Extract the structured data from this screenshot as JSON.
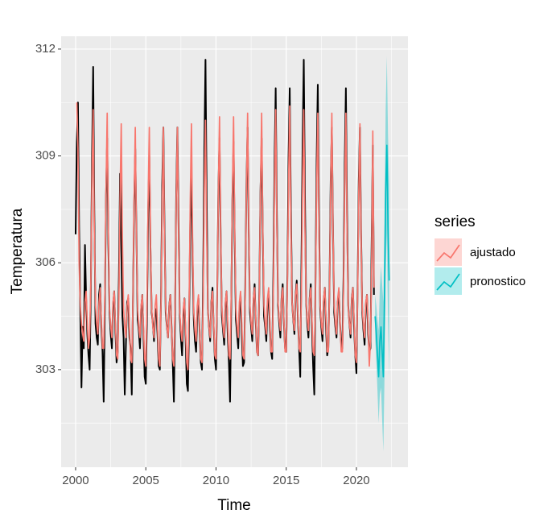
{
  "chart_data": {
    "type": "line",
    "xlabel": "Time",
    "ylabel": "Temperatura",
    "legend_title": "series",
    "legend_position": "right",
    "grid": true,
    "xlim": [
      1998.97,
      2023.67
    ],
    "xticks": [
      2000,
      2005,
      2010,
      2015,
      2020
    ],
    "ylim": [
      300.26,
      312.36
    ],
    "yticks": [
      303,
      306,
      309,
      312
    ],
    "x": [
      2000,
      2000.083,
      2000.167,
      2000.25,
      2000.333,
      2000.417,
      2000.5,
      2000.583,
      2000.667,
      2000.75,
      2000.833,
      2000.917,
      2001,
      2001.083,
      2001.167,
      2001.25,
      2001.333,
      2001.417,
      2001.5,
      2001.583,
      2001.667,
      2001.75,
      2001.833,
      2001.917,
      2002,
      2002.083,
      2002.167,
      2002.25,
      2002.333,
      2002.417,
      2002.5,
      2002.583,
      2002.667,
      2002.75,
      2002.833,
      2002.917,
      2003,
      2003.083,
      2003.167,
      2003.25,
      2003.333,
      2003.417,
      2003.5,
      2003.583,
      2003.667,
      2003.75,
      2003.833,
      2003.917,
      2004,
      2004.083,
      2004.167,
      2004.25,
      2004.333,
      2004.417,
      2004.5,
      2004.583,
      2004.667,
      2004.75,
      2004.833,
      2004.917,
      2005,
      2005.083,
      2005.167,
      2005.25,
      2005.333,
      2005.417,
      2005.5,
      2005.583,
      2005.667,
      2005.75,
      2005.833,
      2005.917,
      2006,
      2006.083,
      2006.167,
      2006.25,
      2006.333,
      2006.417,
      2006.5,
      2006.583,
      2006.667,
      2006.75,
      2006.833,
      2006.917,
      2007,
      2007.083,
      2007.167,
      2007.25,
      2007.333,
      2007.417,
      2007.5,
      2007.583,
      2007.667,
      2007.75,
      2007.833,
      2007.917,
      2008,
      2008.083,
      2008.167,
      2008.25,
      2008.333,
      2008.417,
      2008.5,
      2008.583,
      2008.667,
      2008.75,
      2008.833,
      2008.917,
      2009,
      2009.083,
      2009.167,
      2009.25,
      2009.333,
      2009.417,
      2009.5,
      2009.583,
      2009.667,
      2009.75,
      2009.833,
      2009.917,
      2010,
      2010.083,
      2010.167,
      2010.25,
      2010.333,
      2010.417,
      2010.5,
      2010.583,
      2010.667,
      2010.75,
      2010.833,
      2010.917,
      2011,
      2011.083,
      2011.167,
      2011.25,
      2011.333,
      2011.417,
      2011.5,
      2011.583,
      2011.667,
      2011.75,
      2011.833,
      2011.917,
      2012,
      2012.083,
      2012.167,
      2012.25,
      2012.333,
      2012.417,
      2012.5,
      2012.583,
      2012.667,
      2012.75,
      2012.833,
      2012.917,
      2013,
      2013.083,
      2013.167,
      2013.25,
      2013.333,
      2013.417,
      2013.5,
      2013.583,
      2013.667,
      2013.75,
      2013.833,
      2013.917,
      2014,
      2014.083,
      2014.167,
      2014.25,
      2014.333,
      2014.417,
      2014.5,
      2014.583,
      2014.667,
      2014.75,
      2014.833,
      2014.917,
      2015,
      2015.083,
      2015.167,
      2015.25,
      2015.333,
      2015.417,
      2015.5,
      2015.583,
      2015.667,
      2015.75,
      2015.833,
      2015.917,
      2016,
      2016.083,
      2016.167,
      2016.25,
      2016.333,
      2016.417,
      2016.5,
      2016.583,
      2016.667,
      2016.75,
      2016.833,
      2016.917,
      2017,
      2017.083,
      2017.167,
      2017.25,
      2017.333,
      2017.417,
      2017.5,
      2017.583,
      2017.667,
      2017.75,
      2017.833,
      2017.917,
      2018,
      2018.083,
      2018.167,
      2018.25,
      2018.333,
      2018.417,
      2018.5,
      2018.583,
      2018.667,
      2018.75,
      2018.833,
      2018.917,
      2019,
      2019.083,
      2019.167,
      2019.25,
      2019.333,
      2019.417,
      2019.5,
      2019.583,
      2019.667,
      2019.75,
      2019.833,
      2019.917,
      2020,
      2020.083,
      2020.167,
      2020.25,
      2020.333,
      2020.417,
      2020.5,
      2020.583,
      2020.667,
      2020.75,
      2020.833,
      2020.917,
      2021,
      2021.083,
      2021.167,
      2021.25
    ],
    "series": [
      {
        "color": "#000000",
        "values": [
          306.8,
          309.4,
          310.5,
          307.0,
          304.6,
          302.5,
          304.2,
          303.6,
          306.5,
          305.0,
          304.0,
          303.4,
          303.0,
          305.2,
          308.9,
          311.5,
          307.4,
          304.3,
          303.9,
          303.7,
          305.1,
          305.4,
          304.2,
          303.5,
          302.1,
          304.8,
          307.9,
          309.5,
          306.5,
          304.6,
          304.0,
          303.6,
          304.8,
          305.2,
          304.1,
          303.2,
          303.5,
          305.6,
          308.5,
          306.6,
          304.5,
          303.9,
          302.3,
          303.7,
          304.9,
          305.0,
          303.9,
          303.6,
          302.3,
          304.9,
          307.6,
          309.2,
          306.8,
          304.4,
          304.1,
          303.6,
          304.7,
          305.1,
          304.0,
          302.8,
          302.6,
          304.5,
          307.4,
          309.0,
          306.4,
          304.6,
          304.3,
          303.8,
          304.6,
          304.7,
          304.0,
          303.1,
          303.0,
          305.0,
          308.2,
          309.8,
          306.9,
          304.6,
          304.2,
          303.9,
          304.8,
          305.1,
          304.2,
          303.2,
          302.1,
          304.6,
          308.0,
          309.8,
          307.1,
          304.5,
          303.9,
          303.4,
          304.5,
          305.0,
          303.9,
          302.6,
          302.4,
          304.4,
          307.2,
          308.5,
          306.1,
          304.4,
          303.8,
          303.5,
          304.6,
          305.0,
          304.1,
          303.2,
          303.0,
          305.5,
          309.2,
          311.7,
          307.9,
          304.7,
          304.2,
          303.8,
          304.9,
          305.3,
          304.2,
          303.3,
          303.0,
          305.1,
          308.0,
          309.5,
          306.7,
          304.5,
          304.1,
          303.7,
          304.8,
          305.2,
          304.0,
          303.2,
          302.1,
          304.7,
          307.8,
          309.4,
          306.6,
          304.4,
          304.0,
          303.6,
          304.7,
          305.1,
          304.0,
          303.1,
          303.2,
          305.3,
          308.2,
          309.8,
          306.8,
          304.6,
          304.2,
          303.8,
          304.9,
          305.4,
          304.3,
          303.5,
          303.4,
          305.2,
          308.0,
          309.5,
          306.7,
          304.5,
          304.2,
          303.8,
          304.8,
          305.2,
          304.2,
          303.5,
          303.3,
          305.6,
          308.8,
          310.9,
          307.4,
          304.8,
          304.3,
          303.9,
          305.0,
          305.4,
          304.3,
          303.6,
          303.5,
          305.7,
          309.0,
          310.9,
          307.5,
          304.9,
          304.4,
          304.0,
          305.1,
          305.5,
          304.4,
          303.6,
          302.8,
          305.9,
          309.4,
          311.7,
          307.9,
          304.9,
          304.3,
          303.9,
          305.0,
          305.4,
          304.2,
          303.1,
          302.3,
          305.4,
          308.9,
          311.0,
          307.4,
          304.7,
          304.2,
          303.8,
          304.9,
          305.3,
          304.2,
          303.4,
          303.6,
          305.3,
          308.3,
          309.8,
          306.9,
          304.6,
          304.2,
          303.9,
          304.9,
          305.2,
          304.3,
          303.7,
          303.6,
          305.6,
          308.8,
          310.9,
          307.4,
          304.8,
          304.3,
          303.9,
          305.0,
          305.3,
          304.2,
          303.4,
          302.9,
          305.3,
          308.3,
          309.8,
          306.8,
          304.6,
          304.1,
          303.7,
          304.8,
          305.1,
          304.0,
          303.5,
          303.6,
          306.5,
          309.3,
          305.1
        ]
      },
      {
        "name": "ajustado",
        "color": "#F8766D",
        "values": [
          null,
          310.5,
          309.2,
          306.0,
          304.8,
          304.3,
          304.0,
          303.8,
          304.9,
          305.2,
          304.3,
          303.6,
          303.9,
          305.4,
          308.4,
          310.3,
          306.9,
          304.8,
          304.3,
          304.0,
          304.9,
          305.3,
          304.4,
          303.6,
          303.6,
          305.1,
          308.1,
          310.2,
          306.8,
          304.7,
          304.2,
          303.9,
          304.9,
          305.2,
          304.3,
          303.4,
          303.3,
          305.0,
          307.9,
          309.9,
          306.7,
          304.7,
          304.2,
          303.9,
          304.8,
          305.1,
          304.2,
          303.3,
          303.2,
          304.9,
          307.8,
          309.8,
          306.6,
          304.7,
          304.2,
          303.9,
          304.8,
          305.1,
          304.2,
          303.3,
          303.1,
          304.9,
          307.8,
          309.8,
          306.6,
          304.7,
          304.2,
          303.9,
          304.8,
          305.1,
          304.2,
          303.3,
          303.1,
          304.9,
          307.8,
          309.8,
          306.6,
          304.7,
          304.2,
          303.9,
          304.8,
          305.1,
          304.2,
          303.3,
          303.1,
          304.9,
          307.8,
          309.8,
          306.6,
          304.6,
          304.1,
          303.8,
          304.7,
          305.0,
          304.1,
          303.2,
          303.0,
          304.8,
          307.8,
          309.9,
          306.6,
          304.6,
          304.1,
          303.8,
          304.8,
          305.1,
          304.2,
          303.3,
          303.2,
          305.0,
          308.0,
          310.0,
          306.8,
          304.7,
          304.2,
          303.9,
          304.9,
          305.2,
          304.3,
          303.4,
          303.3,
          305.0,
          308.0,
          310.1,
          306.8,
          304.7,
          304.2,
          303.9,
          304.9,
          305.2,
          304.3,
          303.4,
          303.3,
          305.0,
          308.0,
          310.1,
          306.8,
          304.7,
          304.2,
          303.9,
          304.9,
          305.2,
          304.3,
          303.4,
          303.3,
          305.1,
          308.1,
          310.2,
          306.9,
          304.8,
          304.3,
          304.0,
          305.0,
          305.3,
          304.4,
          303.5,
          303.4,
          305.1,
          308.1,
          310.2,
          306.9,
          304.8,
          304.3,
          304.0,
          305.0,
          305.3,
          304.4,
          303.5,
          303.5,
          305.2,
          308.2,
          310.3,
          307.0,
          304.9,
          304.4,
          304.1,
          305.0,
          305.3,
          304.4,
          303.5,
          303.5,
          305.3,
          308.3,
          310.4,
          307.1,
          304.9,
          304.4,
          304.1,
          305.1,
          305.4,
          304.5,
          303.6,
          303.5,
          305.2,
          308.2,
          310.3,
          307.0,
          304.9,
          304.4,
          304.1,
          305.0,
          305.3,
          304.4,
          303.5,
          303.4,
          305.2,
          308.2,
          310.2,
          306.9,
          304.8,
          304.3,
          304.0,
          305.0,
          305.3,
          304.4,
          303.5,
          303.5,
          305.2,
          308.2,
          310.2,
          306.9,
          304.8,
          304.3,
          304.0,
          305.0,
          305.3,
          304.4,
          303.5,
          303.5,
          305.2,
          308.2,
          310.2,
          306.9,
          304.8,
          304.3,
          304.0,
          305.0,
          305.3,
          304.4,
          303.4,
          303.2,
          305.0,
          308.0,
          309.9,
          306.7,
          304.7,
          304.2,
          303.9,
          304.9,
          305.1,
          304.2,
          303.1,
          303.8,
          306.0,
          309.7,
          305.3
        ]
      },
      {
        "name": "pronostico",
        "color": "#00BFC4",
        "x": [
          2021.333,
          2021.417,
          2021.5,
          2021.583,
          2021.667,
          2021.75,
          2021.833,
          2021.917,
          2022,
          2022.083,
          2022.167,
          2022.25,
          2022.333
        ],
        "values": [
          304.5,
          304.0,
          303.4,
          302.8,
          303.8,
          304.2,
          303.5,
          302.8,
          305.0,
          308.0,
          309.3,
          307.0,
          305.5
        ],
        "lower": [
          303.9,
          303.2,
          302.4,
          301.5,
          302.3,
          302.5,
          301.6,
          300.7,
          302.8,
          305.7,
          306.8,
          304.4,
          302.8
        ],
        "upper": [
          305.1,
          304.8,
          304.4,
          304.1,
          305.3,
          305.9,
          305.4,
          304.9,
          307.2,
          310.3,
          311.8,
          309.6,
          308.2
        ]
      }
    ]
  }
}
